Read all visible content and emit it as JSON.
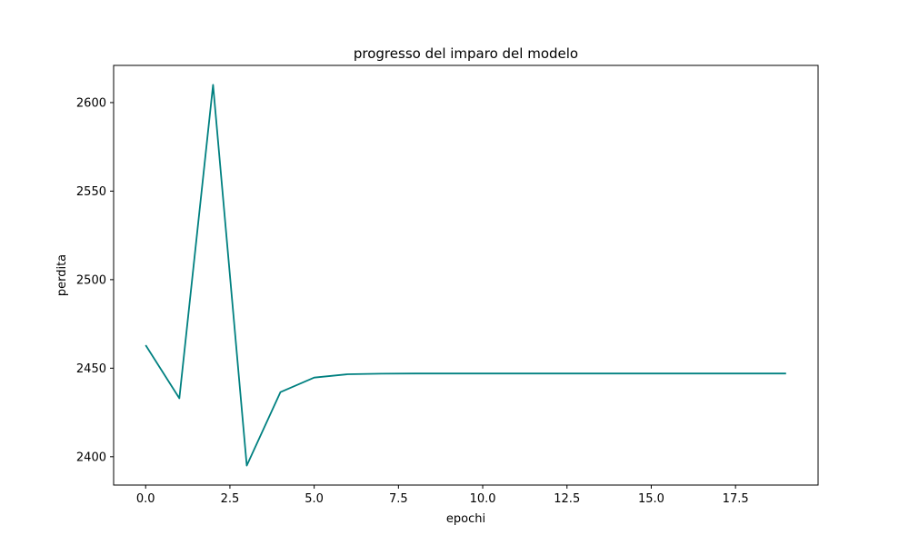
{
  "chart_data": {
    "type": "line",
    "title": "progresso del imparo del modelo",
    "xlabel": "epochi",
    "ylabel": "perdita",
    "xlim": [
      -0.95,
      19.95
    ],
    "ylim": [
      2384,
      2621
    ],
    "xticks": [
      0.0,
      2.5,
      5.0,
      7.5,
      10.0,
      12.5,
      15.0,
      17.5
    ],
    "xtick_labels": [
      "0.0",
      "2.5",
      "5.0",
      "7.5",
      "10.0",
      "12.5",
      "15.0",
      "17.5"
    ],
    "yticks": [
      2400,
      2450,
      2500,
      2550,
      2600
    ],
    "ytick_labels": [
      "2400",
      "2450",
      "2500",
      "2550",
      "2600"
    ],
    "grid": false,
    "series": [
      {
        "color": "#008080",
        "x": [
          0,
          1,
          2,
          3,
          4,
          5,
          6,
          7,
          8,
          9,
          10,
          11,
          12,
          13,
          14,
          15,
          16,
          17,
          18,
          19
        ],
        "y": [
          2463,
          2433,
          2610,
          2395,
          2436.5,
          2444.7,
          2446.6,
          2446.9,
          2447,
          2447,
          2447,
          2447,
          2447,
          2447,
          2447,
          2447,
          2447,
          2447,
          2447,
          2447
        ]
      }
    ]
  }
}
